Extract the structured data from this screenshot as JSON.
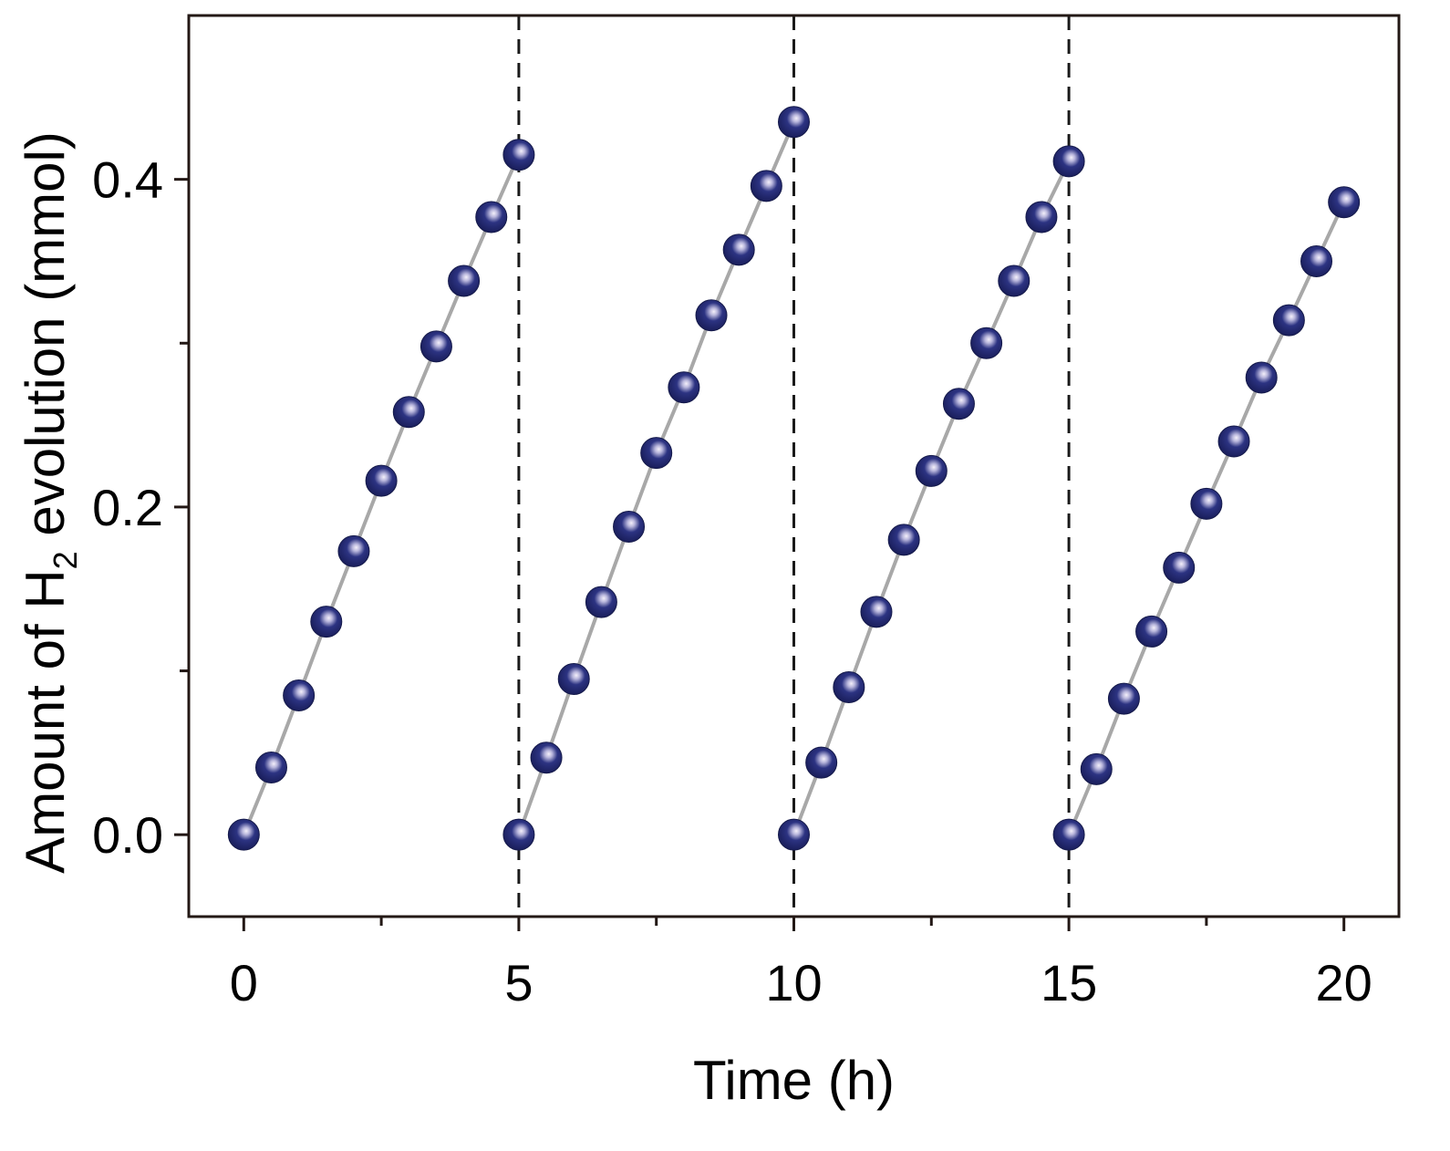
{
  "chart_data": {
    "type": "scatter",
    "title": "",
    "xlabel": "Time (h)",
    "ylabel_parts": [
      "Amount of H",
      "2",
      " evolution (mmol)"
    ],
    "xlim": [
      -1,
      21
    ],
    "ylim": [
      -0.05,
      0.5
    ],
    "x_ticks": [
      0,
      5,
      10,
      15,
      20
    ],
    "x_tick_labels": [
      "0",
      "5",
      "10",
      "15",
      "20"
    ],
    "x_minor_ticks": [
      2.5,
      7.5,
      12.5,
      17.5
    ],
    "y_ticks": [
      0.0,
      0.2,
      0.4
    ],
    "y_tick_labels": [
      "0.0",
      "0.2",
      "0.4"
    ],
    "y_minor_ticks": [
      0.1,
      0.3
    ],
    "cycle_separators_x": [
      5,
      10,
      15
    ],
    "grid": false,
    "legend": "none",
    "colors": {
      "marker": "#1e2466",
      "highlight": "#d8d8ec",
      "line": "#a8a8a8",
      "separator": "#1a1a1a"
    },
    "series": [
      {
        "x": [
          0,
          0.5,
          1,
          1.5,
          2,
          2.5,
          3,
          3.5,
          4,
          4.5,
          5
        ],
        "y": [
          0.0,
          0.041,
          0.085,
          0.13,
          0.173,
          0.216,
          0.258,
          0.298,
          0.338,
          0.377,
          0.415
        ]
      },
      {
        "x": [
          5,
          5.5,
          6,
          6.5,
          7,
          7.5,
          8,
          8.5,
          9,
          9.5,
          10
        ],
        "y": [
          0.0,
          0.047,
          0.095,
          0.142,
          0.188,
          0.233,
          0.273,
          0.317,
          0.357,
          0.396,
          0.435
        ]
      },
      {
        "x": [
          10,
          10.5,
          11,
          11.5,
          12,
          12.5,
          13,
          13.5,
          14,
          14.5,
          15
        ],
        "y": [
          0.0,
          0.044,
          0.09,
          0.136,
          0.18,
          0.222,
          0.263,
          0.3,
          0.338,
          0.377,
          0.411
        ]
      },
      {
        "x": [
          15,
          15.5,
          16,
          16.5,
          17,
          17.5,
          18,
          18.5,
          19,
          19.5,
          20
        ],
        "y": [
          0.0,
          0.04,
          0.083,
          0.124,
          0.163,
          0.202,
          0.24,
          0.279,
          0.314,
          0.35,
          0.386
        ]
      }
    ]
  }
}
